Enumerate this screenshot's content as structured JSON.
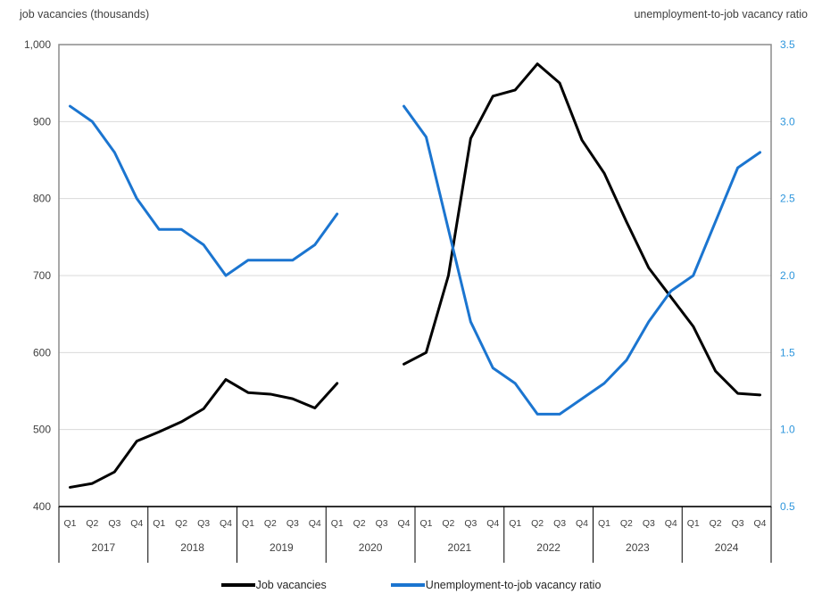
{
  "titles": {
    "left": "job vacancies (thousands)",
    "right": "unemployment-to-job vacancy ratio"
  },
  "colors": {
    "black_line": "#000000",
    "blue_line": "#1B75D0",
    "axis_text": "#404040",
    "right_axis_text": "#2E96DC",
    "gridline": "#D9D9D9",
    "plot_border": "#8C8C8C",
    "axis_line": "#000000"
  },
  "chart_data": {
    "type": "line",
    "grid": true,
    "legend_position": "bottom",
    "years": [
      "2017",
      "2018",
      "2019",
      "2020",
      "2021",
      "2022",
      "2023",
      "2024"
    ],
    "quarters": [
      "Q1",
      "Q2",
      "Q3",
      "Q4"
    ],
    "left_axis": {
      "label": "job vacancies (thousands)",
      "min": 400,
      "max": 1000,
      "tick_values": [
        1000,
        900,
        800,
        700,
        600,
        500,
        400
      ],
      "ticks": [
        "1,000",
        "900",
        "800",
        "700",
        "600",
        "500",
        "400"
      ]
    },
    "right_axis": {
      "label": "unemployment-to-job vacancy ratio",
      "min": 0.5,
      "max": 3.5,
      "tick_values": [
        3.5,
        3.0,
        2.5,
        2.0,
        1.5,
        1.0,
        0.5
      ],
      "ticks": [
        "3.5",
        "3.0",
        "2.5",
        "2.0",
        "1.5",
        "1.0",
        "0.5"
      ]
    },
    "note": "values are null for 2020 Q2 and 2020 Q3 (gap in lines)",
    "series": [
      {
        "name": "Job vacancies",
        "axis": "left",
        "color": "#000000",
        "values": [
          425,
          430,
          445,
          485,
          497,
          510,
          527,
          565,
          548,
          546,
          540,
          528,
          560,
          null,
          null,
          585,
          600,
          700,
          878,
          933,
          941,
          975,
          950,
          876,
          833,
          770,
          710,
          672,
          634,
          576,
          547,
          545
        ]
      },
      {
        "name": "Unemployment-to-job vacancy ratio",
        "axis": "right",
        "color": "#1B75D0",
        "values": [
          3.1,
          3.0,
          2.8,
          2.5,
          2.3,
          2.3,
          2.2,
          2.0,
          2.1,
          2.1,
          2.1,
          2.2,
          2.4,
          null,
          null,
          3.1,
          2.9,
          2.3,
          1.7,
          1.4,
          1.3,
          1.1,
          1.1,
          1.2,
          1.3,
          1.45,
          1.7,
          1.9,
          2.0,
          2.35,
          2.7,
          2.8
        ]
      }
    ]
  },
  "legend": {
    "items": [
      {
        "label": "Job vacancies",
        "color": "#000000"
      },
      {
        "label": "Unemployment-to-job vacancy ratio",
        "color": "#1B75D0"
      }
    ]
  }
}
